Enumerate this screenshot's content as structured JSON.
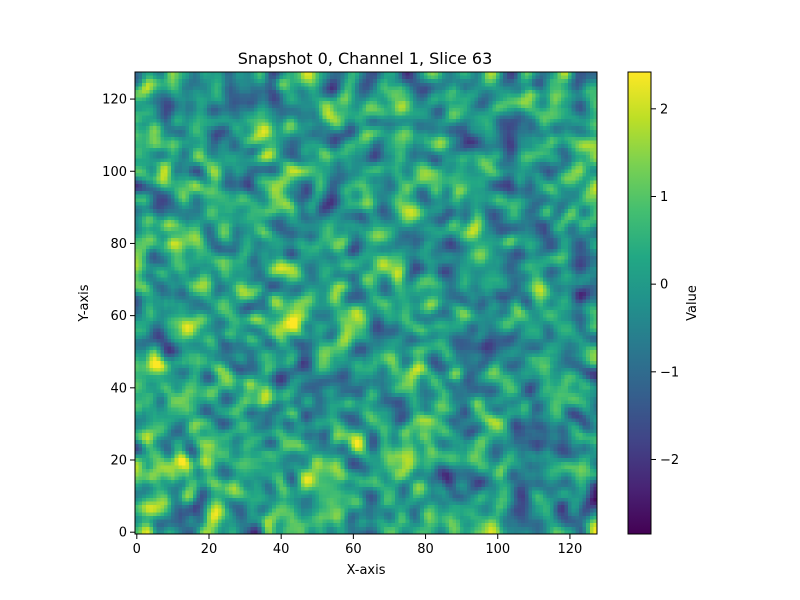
{
  "chart_data": {
    "type": "heatmap",
    "title": "Snapshot 0, Channel 1, Slice 63",
    "xlabel": "X-axis",
    "ylabel": "Y-axis",
    "xlim": [
      0,
      127
    ],
    "ylim": [
      0,
      127
    ],
    "grid_size": [
      128,
      128
    ],
    "x_ticks": [
      0,
      20,
      40,
      60,
      80,
      100,
      120
    ],
    "y_ticks": [
      0,
      20,
      40,
      60,
      80,
      100,
      120
    ],
    "colorbar": {
      "label": "Value",
      "colormap": "viridis",
      "vmin": -2.85,
      "vmax": 2.42,
      "ticks": [
        -2,
        -1,
        0,
        1,
        2
      ],
      "tick_labels": [
        "−2",
        "−1",
        "0",
        "1",
        "2"
      ]
    },
    "value_range": [
      -2.85,
      2.42
    ],
    "grid": false
  }
}
